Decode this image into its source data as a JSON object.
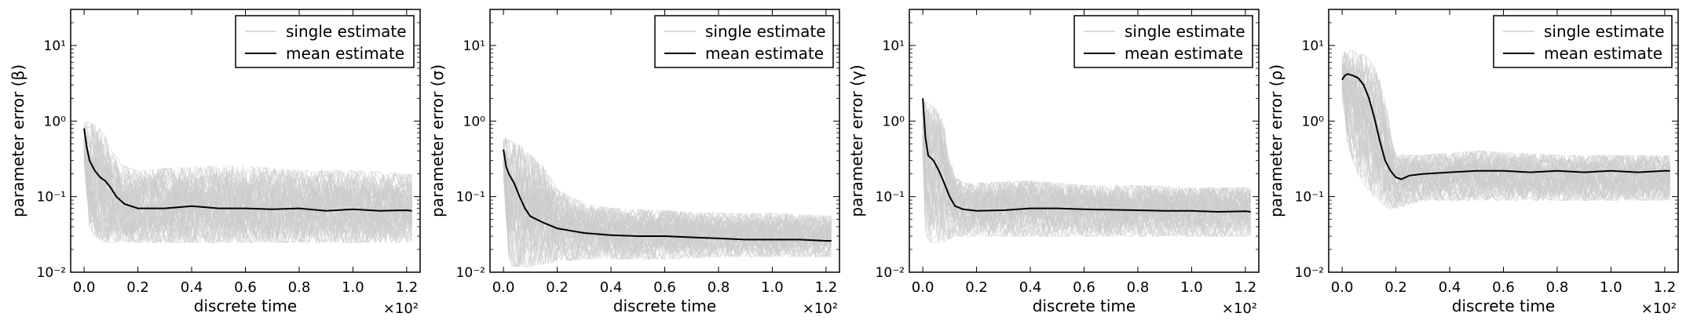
{
  "chart_data": [
    {
      "type": "line",
      "xlabel": "discrete time",
      "ylabel": "parameter error (β)",
      "x_multiplier_label": "×10²",
      "xlim": [
        -0.05,
        1.25
      ],
      "ylim": [
        0.01,
        30
      ],
      "yscale": "log",
      "xticks": [
        "0.0",
        "0.2",
        "0.4",
        "0.6",
        "0.8",
        "1.0",
        "1.2"
      ],
      "yticks": [
        "10⁻²",
        "10⁻¹",
        "10⁰",
        "10¹"
      ],
      "legend": {
        "position": "top-right",
        "entries": [
          "single estimate",
          "mean estimate"
        ]
      },
      "series": [
        {
          "name": "mean estimate",
          "color": "#000000",
          "x": [
            0,
            0.01,
            0.02,
            0.04,
            0.06,
            0.08,
            0.1,
            0.12,
            0.15,
            0.2,
            0.3,
            0.4,
            0.5,
            0.6,
            0.7,
            0.8,
            0.9,
            1.0,
            1.1,
            1.2,
            1.22
          ],
          "values": [
            0.8,
            0.45,
            0.3,
            0.22,
            0.18,
            0.16,
            0.13,
            0.1,
            0.08,
            0.07,
            0.07,
            0.075,
            0.07,
            0.07,
            0.068,
            0.07,
            0.065,
            0.068,
            0.065,
            0.066,
            0.065
          ]
        },
        {
          "name": "single estimate",
          "color": "#cccccc",
          "band_x": [
            0,
            0.01,
            0.02,
            0.04,
            0.06,
            0.08,
            0.1,
            0.15,
            0.2,
            0.4,
            0.6,
            0.8,
            1.0,
            1.22
          ],
          "band_low": [
            0.3,
            0.1,
            0.04,
            0.03,
            0.028,
            0.025,
            0.025,
            0.025,
            0.025,
            0.025,
            0.025,
            0.025,
            0.025,
            0.025
          ],
          "band_high": [
            1.0,
            1.0,
            0.95,
            0.9,
            0.8,
            0.6,
            0.4,
            0.25,
            0.22,
            0.25,
            0.25,
            0.22,
            0.22,
            0.2
          ]
        }
      ]
    },
    {
      "type": "line",
      "xlabel": "discrete time",
      "ylabel": "parameter error (σ)",
      "x_multiplier_label": "×10²",
      "xlim": [
        -0.05,
        1.25
      ],
      "ylim": [
        0.01,
        30
      ],
      "yscale": "log",
      "xticks": [
        "0.0",
        "0.2",
        "0.4",
        "0.6",
        "0.8",
        "1.0",
        "1.2"
      ],
      "yticks": [
        "10⁻²",
        "10⁻¹",
        "10⁰",
        "10¹"
      ],
      "legend": {
        "position": "top-right",
        "entries": [
          "single estimate",
          "mean estimate"
        ]
      },
      "series": [
        {
          "name": "mean estimate",
          "color": "#000000",
          "x": [
            0,
            0.01,
            0.02,
            0.04,
            0.06,
            0.08,
            0.1,
            0.15,
            0.2,
            0.3,
            0.4,
            0.5,
            0.6,
            0.7,
            0.8,
            0.9,
            1.0,
            1.1,
            1.2,
            1.22
          ],
          "values": [
            0.42,
            0.25,
            0.2,
            0.15,
            0.1,
            0.07,
            0.055,
            0.045,
            0.038,
            0.033,
            0.031,
            0.03,
            0.03,
            0.029,
            0.028,
            0.027,
            0.027,
            0.027,
            0.026,
            0.026
          ]
        },
        {
          "name": "single estimate",
          "color": "#cccccc",
          "band_x": [
            0,
            0.01,
            0.02,
            0.05,
            0.1,
            0.15,
            0.2,
            0.3,
            0.4,
            0.6,
            0.8,
            1.0,
            1.22
          ],
          "band_low": [
            0.2,
            0.05,
            0.012,
            0.012,
            0.012,
            0.013,
            0.014,
            0.015,
            0.015,
            0.015,
            0.016,
            0.016,
            0.016
          ],
          "band_high": [
            0.6,
            0.6,
            0.55,
            0.5,
            0.35,
            0.25,
            0.12,
            0.08,
            0.07,
            0.065,
            0.06,
            0.06,
            0.055
          ]
        }
      ]
    },
    {
      "type": "line",
      "xlabel": "discrete time",
      "ylabel": "parameter error (γ)",
      "x_multiplier_label": "×10²",
      "xlim": [
        -0.05,
        1.25
      ],
      "ylim": [
        0.01,
        30
      ],
      "yscale": "log",
      "xticks": [
        "0.0",
        "0.2",
        "0.4",
        "0.6",
        "0.8",
        "1.0",
        "1.2"
      ],
      "yticks": [
        "10⁻²",
        "10⁻¹",
        "10⁰",
        "10¹"
      ],
      "legend": {
        "position": "top-right",
        "entries": [
          "single estimate",
          "mean estimate"
        ]
      },
      "series": [
        {
          "name": "mean estimate",
          "color": "#000000",
          "x": [
            0,
            0.01,
            0.02,
            0.04,
            0.06,
            0.08,
            0.1,
            0.12,
            0.15,
            0.2,
            0.3,
            0.4,
            0.5,
            0.6,
            0.7,
            0.8,
            0.9,
            1.0,
            1.1,
            1.2,
            1.22
          ],
          "values": [
            2.0,
            0.6,
            0.35,
            0.3,
            0.22,
            0.15,
            0.1,
            0.075,
            0.068,
            0.065,
            0.066,
            0.07,
            0.07,
            0.068,
            0.067,
            0.066,
            0.065,
            0.065,
            0.063,
            0.064,
            0.063
          ]
        },
        {
          "name": "single estimate",
          "color": "#cccccc",
          "band_x": [
            0,
            0.01,
            0.03,
            0.06,
            0.08,
            0.1,
            0.12,
            0.15,
            0.2,
            0.4,
            0.6,
            0.8,
            1.0,
            1.22
          ],
          "band_low": [
            0.4,
            0.03,
            0.025,
            0.025,
            0.025,
            0.028,
            0.03,
            0.03,
            0.03,
            0.03,
            0.03,
            0.03,
            0.03,
            0.03
          ],
          "band_high": [
            2.0,
            1.8,
            1.6,
            1.3,
            0.8,
            0.3,
            0.18,
            0.15,
            0.15,
            0.16,
            0.14,
            0.14,
            0.13,
            0.13
          ]
        }
      ]
    },
    {
      "type": "line",
      "xlabel": "discrete time",
      "ylabel": "parameter error (ρ)",
      "x_multiplier_label": "×10²",
      "xlim": [
        -0.05,
        1.25
      ],
      "ylim": [
        0.01,
        30
      ],
      "yscale": "log",
      "xticks": [
        "0.0",
        "0.2",
        "0.4",
        "0.6",
        "0.8",
        "1.0",
        "1.2"
      ],
      "yticks": [
        "10⁻²",
        "10⁻¹",
        "10⁰",
        "10¹"
      ],
      "legend": {
        "position": "top-right",
        "entries": [
          "single estimate",
          "mean estimate"
        ]
      },
      "series": [
        {
          "name": "mean estimate",
          "color": "#000000",
          "x": [
            0,
            0.01,
            0.02,
            0.04,
            0.06,
            0.08,
            0.1,
            0.12,
            0.14,
            0.16,
            0.18,
            0.2,
            0.22,
            0.25,
            0.3,
            0.4,
            0.5,
            0.6,
            0.7,
            0.8,
            0.9,
            1.0,
            1.1,
            1.2,
            1.22
          ],
          "values": [
            3.5,
            4.0,
            4.2,
            4.0,
            3.7,
            3.0,
            2.0,
            1.1,
            0.55,
            0.3,
            0.22,
            0.18,
            0.17,
            0.19,
            0.2,
            0.21,
            0.22,
            0.22,
            0.21,
            0.22,
            0.21,
            0.22,
            0.21,
            0.22,
            0.22
          ]
        },
        {
          "name": "single estimate",
          "color": "#cccccc",
          "band_x": [
            0,
            0.02,
            0.04,
            0.06,
            0.08,
            0.1,
            0.12,
            0.15,
            0.18,
            0.2,
            0.25,
            0.3,
            0.5,
            0.8,
            1.0,
            1.22
          ],
          "band_low": [
            2.0,
            0.5,
            0.3,
            0.2,
            0.15,
            0.12,
            0.1,
            0.08,
            0.07,
            0.07,
            0.08,
            0.09,
            0.09,
            0.09,
            0.09,
            0.09
          ],
          "band_high": [
            8.0,
            8.5,
            8.5,
            8.0,
            7.5,
            6.5,
            5.0,
            2.5,
            0.6,
            0.35,
            0.35,
            0.35,
            0.4,
            0.35,
            0.35,
            0.35
          ]
        }
      ]
    }
  ]
}
